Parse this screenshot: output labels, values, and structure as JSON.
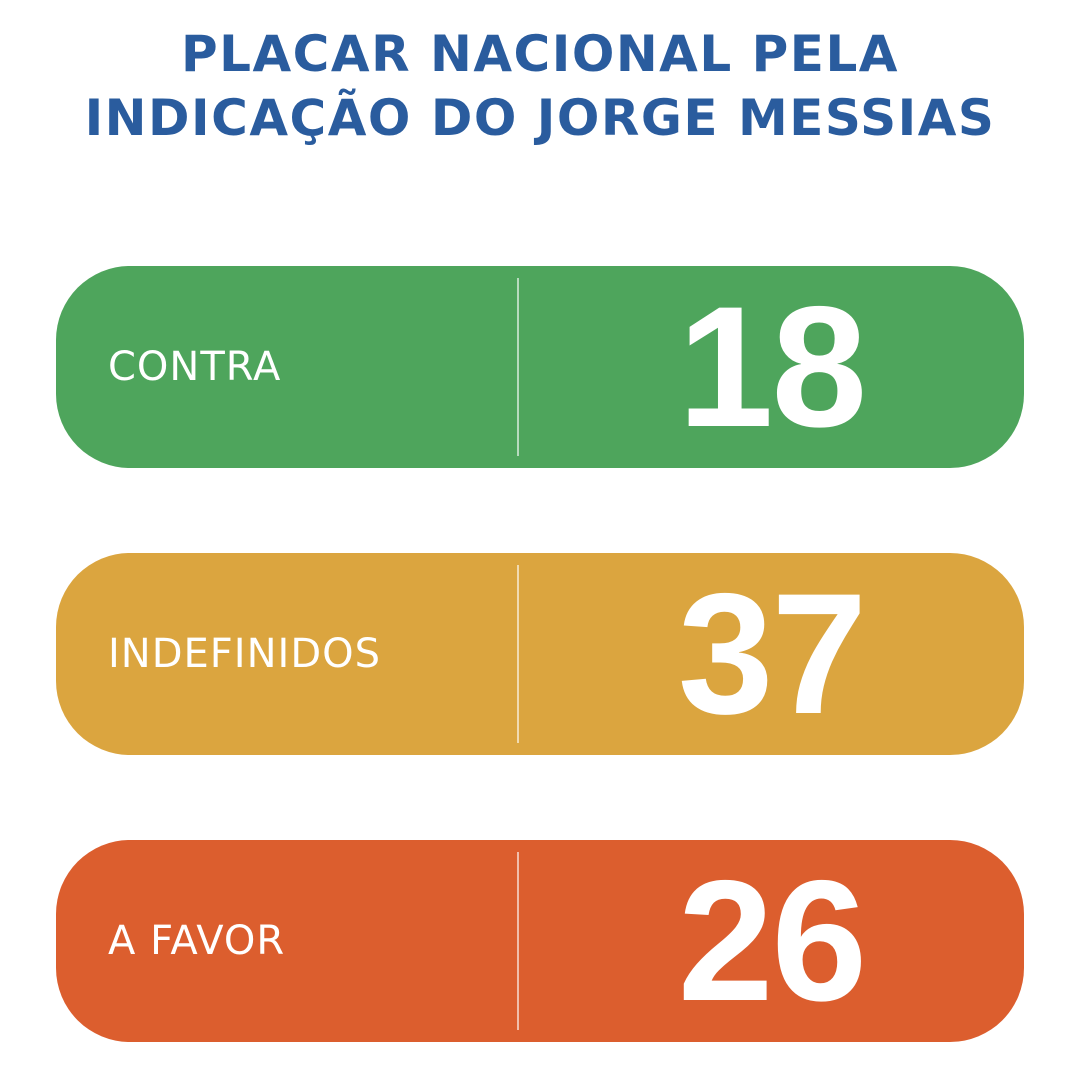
{
  "title": {
    "line1": "PLACAR NACIONAL PELA",
    "line2": "INDICAÇÃO DO JORGE MESSIAS"
  },
  "colors": {
    "title": "#2a5c9e",
    "contra": "#4ea55c",
    "indefinidos": "#dba53f",
    "a_favor": "#dc5e2e"
  },
  "rows": [
    {
      "label": "CONTRA",
      "value": "18",
      "color": "#4ea55c"
    },
    {
      "label": "INDEFINIDOS",
      "value": "37",
      "color": "#dba53f"
    },
    {
      "label": "A FAVOR",
      "value": "26",
      "color": "#dc5e2e"
    }
  ]
}
